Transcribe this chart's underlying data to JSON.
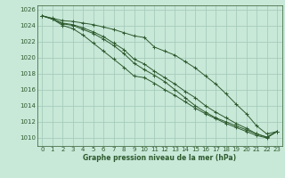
{
  "bg_color": "#c8e8d8",
  "grid_color": "#a0c8b8",
  "line_color": "#2d5a2d",
  "xlabel": "Graphe pression niveau de la mer (hPa)",
  "xlim": [
    -0.5,
    23.5
  ],
  "ylim": [
    1009.0,
    1026.5
  ],
  "yticks": [
    1010,
    1012,
    1014,
    1016,
    1018,
    1020,
    1022,
    1024,
    1026
  ],
  "xticks": [
    0,
    1,
    2,
    3,
    4,
    5,
    6,
    7,
    8,
    9,
    10,
    11,
    12,
    13,
    14,
    15,
    16,
    17,
    18,
    19,
    20,
    21,
    22,
    23
  ],
  "series": [
    [
      1025.2,
      1024.9,
      1024.6,
      1024.5,
      1024.3,
      1024.1,
      1023.8,
      1023.5,
      1023.1,
      1022.7,
      1022.5,
      1021.3,
      1020.8,
      1020.3,
      1019.5,
      1018.7,
      1017.7,
      1016.7,
      1015.5,
      1014.2,
      1013.0,
      1011.5,
      1010.5,
      1010.8
    ],
    [
      1025.2,
      1024.8,
      1024.2,
      1024.0,
      1023.5,
      1023.0,
      1022.3,
      1021.5,
      1020.5,
      1019.3,
      1018.5,
      1017.8,
      1017.0,
      1016.0,
      1015.0,
      1014.0,
      1013.2,
      1012.5,
      1012.0,
      1011.5,
      1011.0,
      1010.5,
      1010.1,
      1010.8
    ],
    [
      1025.2,
      1024.8,
      1024.3,
      1024.1,
      1023.7,
      1023.2,
      1022.6,
      1021.8,
      1021.0,
      1019.8,
      1019.2,
      1018.3,
      1017.5,
      1016.7,
      1015.8,
      1015.0,
      1014.0,
      1013.2,
      1012.5,
      1011.8,
      1011.2,
      1010.5,
      1010.1,
      1010.8
    ],
    [
      1025.2,
      1024.8,
      1024.0,
      1023.6,
      1022.8,
      1021.8,
      1020.8,
      1019.8,
      1018.8,
      1017.7,
      1017.5,
      1016.8,
      1016.0,
      1015.3,
      1014.5,
      1013.7,
      1013.0,
      1012.4,
      1011.8,
      1011.3,
      1010.8,
      1010.3,
      1010.0,
      1010.8
    ]
  ]
}
